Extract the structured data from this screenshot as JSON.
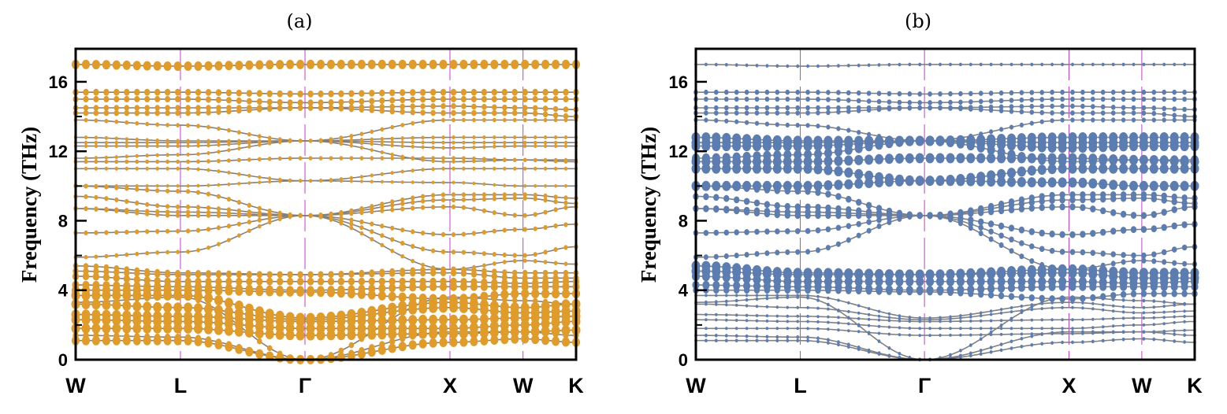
{
  "chart_data": {
    "type": "line",
    "ylabel": "Frequency (THz)",
    "ylim": [
      0,
      17.9
    ],
    "yticks": [
      0,
      4,
      8,
      12,
      16
    ],
    "yminor": [
      2,
      6,
      10,
      14
    ],
    "kpoints": [
      "W",
      "L",
      "Γ",
      "X",
      "W",
      "K"
    ],
    "kpoint_positions": [
      0,
      0.2094,
      0.4583,
      0.748,
      0.894,
      1.0
    ],
    "bands": [
      [
        17.0,
        16.9,
        17.0,
        17.0,
        17.0,
        17.0
      ],
      [
        15.4,
        15.4,
        15.3,
        15.4,
        15.4,
        15.4
      ],
      [
        15.0,
        15.0,
        14.8,
        15.0,
        15.0,
        15.0
      ],
      [
        14.5,
        14.5,
        14.5,
        14.6,
        14.5,
        14.4
      ],
      [
        14.2,
        14.2,
        14.5,
        14.2,
        14.2,
        14.0
      ],
      [
        13.8,
        13.5,
        12.6,
        13.8,
        13.8,
        13.8
      ],
      [
        12.8,
        12.6,
        12.6,
        12.8,
        12.8,
        12.8
      ],
      [
        12.5,
        12.5,
        12.6,
        12.5,
        12.5,
        12.5
      ],
      [
        12.3,
        12.3,
        12.6,
        12.2,
        12.3,
        12.3
      ],
      [
        11.6,
        11.8,
        12.6,
        11.4,
        11.5,
        11.5
      ],
      [
        11.4,
        11.4,
        11.6,
        11.6,
        11.5,
        11.4
      ],
      [
        11.0,
        11.0,
        10.3,
        11.0,
        11.0,
        11.0
      ],
      [
        10.0,
        10.0,
        10.3,
        10.2,
        10.0,
        10.0
      ],
      [
        10.0,
        9.7,
        8.3,
        9.5,
        9.5,
        9.3
      ],
      [
        9.4,
        8.8,
        8.3,
        9.2,
        9.3,
        9.0
      ],
      [
        8.7,
        8.5,
        8.3,
        8.8,
        8.3,
        8.8
      ],
      [
        8.7,
        8.3,
        8.3,
        7.2,
        7.5,
        7.8
      ],
      [
        7.3,
        7.4,
        8.3,
        6.2,
        6.0,
        6.5
      ],
      [
        5.9,
        6.2,
        8.3,
        5.2,
        5.7,
        5.5
      ],
      [
        5.4,
        5.0,
        4.9,
        5.2,
        5.0,
        5.0
      ],
      [
        5.1,
        4.9,
        4.9,
        5.0,
        4.7,
        4.7
      ],
      [
        4.8,
        4.5,
        4.5,
        4.5,
        4.4,
        4.5
      ],
      [
        4.3,
        4.2,
        4.0,
        4.2,
        4.2,
        4.2
      ],
      [
        4.0,
        4.0,
        3.9,
        3.5,
        3.8,
        3.8
      ],
      [
        3.7,
        3.7,
        2.4,
        3.3,
        3.0,
        3.2
      ],
      [
        3.2,
        3.0,
        2.3,
        3.0,
        2.7,
        2.8
      ],
      [
        2.6,
        2.5,
        2.2,
        2.3,
        2.4,
        2.5
      ],
      [
        2.3,
        2.2,
        1.8,
        1.8,
        2.0,
        2.2
      ],
      [
        1.8,
        1.8,
        1.4,
        1.5,
        1.6,
        1.7
      ],
      [
        1.4,
        1.3,
        0.0,
        1.6,
        1.6,
        1.4
      ],
      [
        1.1,
        1.1,
        0.0,
        1.0,
        1.2,
        1.0
      ],
      [
        3.3,
        3.6,
        0.0,
        3.6,
        3.4,
        3.2
      ]
    ],
    "line_color": "#808080",
    "kline_color": "#C040C8",
    "panels": [
      {
        "title": "(a)",
        "marker_color": "#E09B28",
        "weights": [
          0.9,
          0.6,
          0.55,
          0.5,
          0.5,
          0.3,
          0.25,
          0.25,
          0.25,
          0.25,
          0.3,
          0.25,
          0.2,
          0.35,
          0.35,
          0.35,
          0.35,
          0.35,
          0.3,
          0.5,
          0.6,
          0.7,
          0.8,
          0.9,
          1,
          1,
          1,
          1,
          1,
          0.6,
          0.9,
          0.5
        ]
      },
      {
        "title": "(b)",
        "marker_color": "#5B7DB1",
        "weights": [
          0.2,
          0.4,
          0.4,
          0.4,
          0.4,
          0.35,
          1,
          1,
          1,
          0.9,
          1,
          1,
          1,
          0.6,
          0.6,
          0.6,
          0.6,
          0.5,
          0.45,
          1,
          1,
          0.9,
          0.8,
          0.6,
          0.15,
          0.15,
          0.15,
          0.15,
          0.15,
          0.2,
          0.2,
          0.2
        ]
      }
    ]
  }
}
